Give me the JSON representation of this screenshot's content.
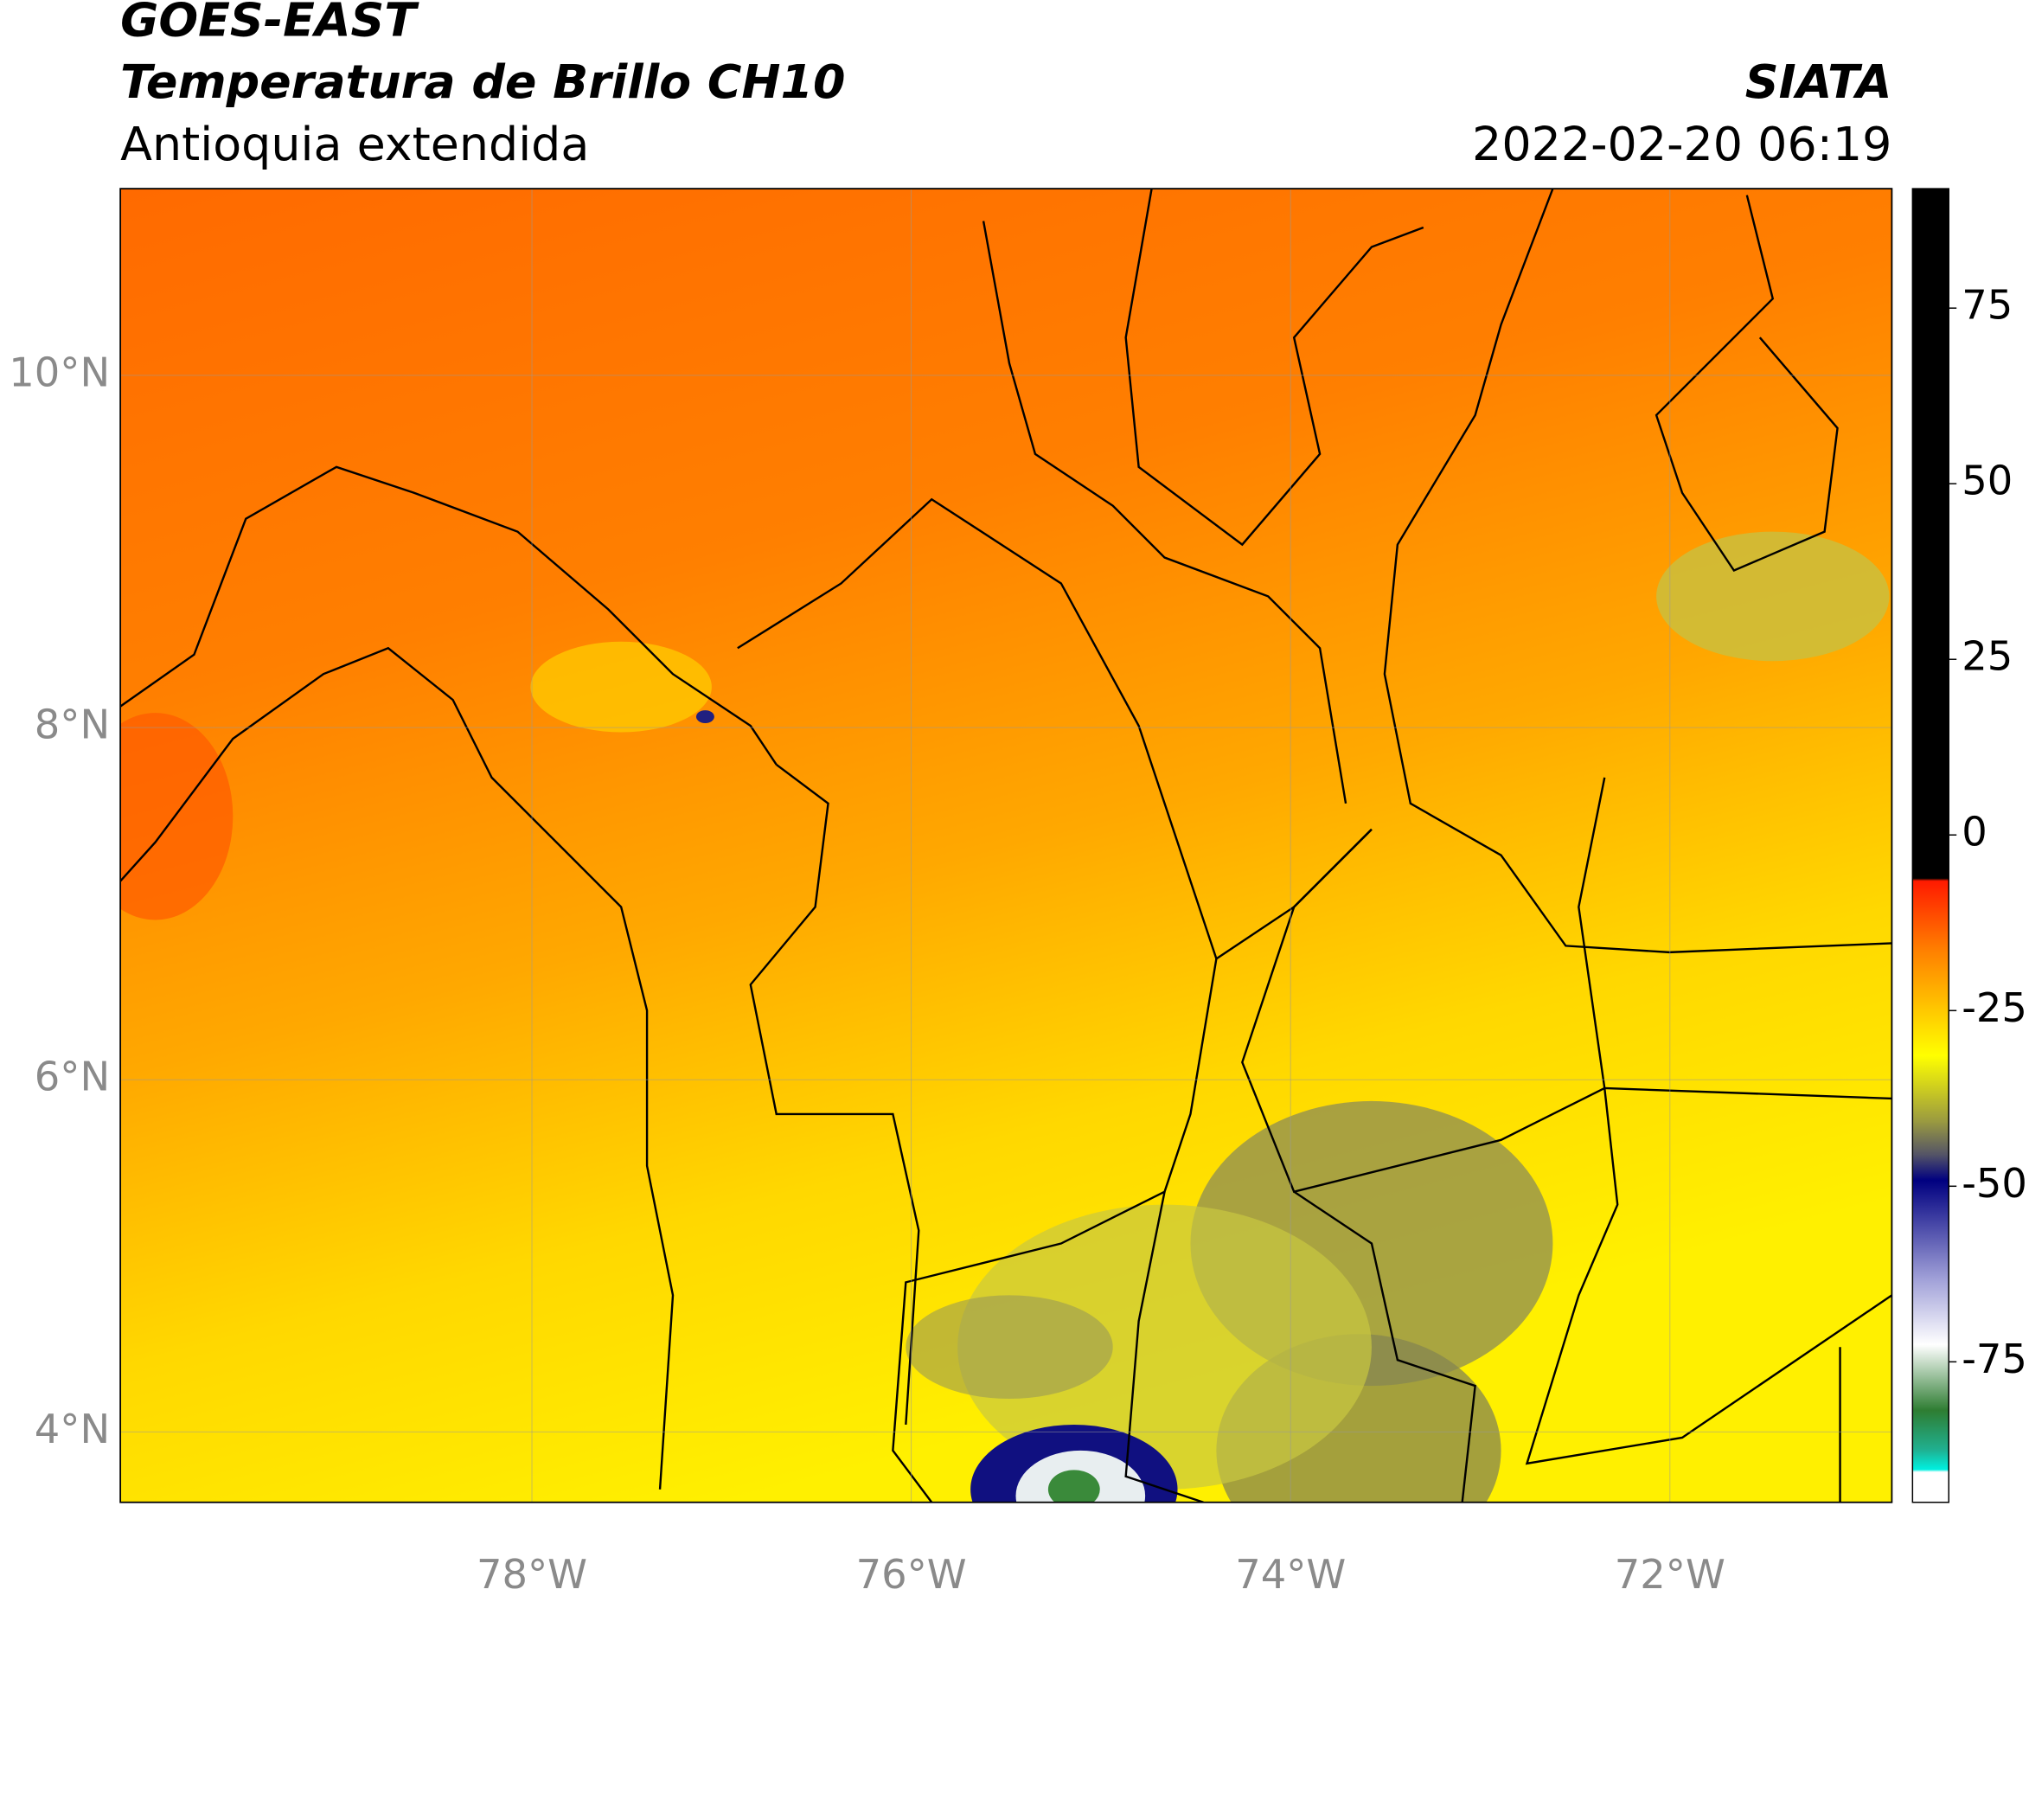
{
  "header": {
    "title": "GOES-EAST",
    "subtitle": "Temperatura de Brillo CH10",
    "region": "Antioquia extendida",
    "source": "SIATA",
    "timestamp": "2022-02-20 06:19"
  },
  "map": {
    "xlim": [
      -80.17,
      -70.83
    ],
    "ylim": [
      3.6,
      11.06
    ],
    "xticks": [
      {
        "value": -78,
        "label": "78°W"
      },
      {
        "value": -76,
        "label": "76°W"
      },
      {
        "value": -74,
        "label": "74°W"
      },
      {
        "value": -72,
        "label": "72°W"
      }
    ],
    "yticks": [
      {
        "value": 10,
        "label": "10°N"
      },
      {
        "value": 8,
        "label": "8°N"
      },
      {
        "value": 6,
        "label": "6°N"
      },
      {
        "value": 4,
        "label": "4°N"
      }
    ],
    "grid": true
  },
  "colorbar": {
    "lim": [
      -95,
      92
    ],
    "ticks": [
      75,
      50,
      25,
      0,
      -25,
      -50,
      -75
    ]
  }
}
